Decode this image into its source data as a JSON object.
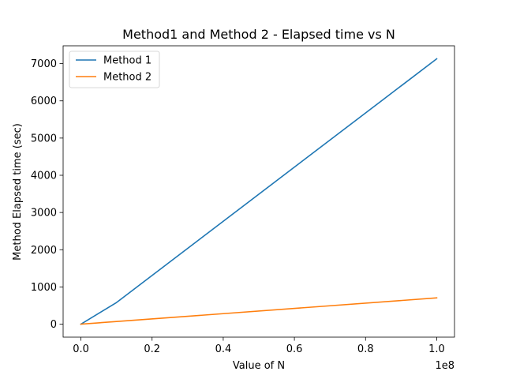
{
  "chart_data": {
    "type": "line",
    "title": "Method1 and Method 2 - Elapsed time vs N",
    "xlabel": "Value of N",
    "ylabel": "Method Elapsed time (sec)",
    "x_offset_label": "1e8",
    "xlim": [
      -0.05,
      1.05
    ],
    "ylim": [
      -350,
      7480
    ],
    "x_ticks": [
      0.0,
      0.2,
      0.4,
      0.6,
      0.8,
      1.0
    ],
    "x_tick_labels": [
      "0.0",
      "0.2",
      "0.4",
      "0.6",
      "0.8",
      "1.0"
    ],
    "y_ticks": [
      0,
      1000,
      2000,
      3000,
      4000,
      5000,
      6000,
      7000
    ],
    "y_tick_labels": [
      "0",
      "1000",
      "2000",
      "3000",
      "4000",
      "5000",
      "6000",
      "7000"
    ],
    "grid": false,
    "legend_position": "upper-left",
    "series": [
      {
        "name": "Method 1",
        "color": "#1f77b4",
        "x": [
          0.0,
          0.1,
          1.0
        ],
        "y": [
          0,
          580,
          7130
        ]
      },
      {
        "name": "Method 2",
        "color": "#ff7f0e",
        "x": [
          0.0,
          0.1,
          1.0
        ],
        "y": [
          0,
          70,
          705
        ]
      }
    ]
  }
}
